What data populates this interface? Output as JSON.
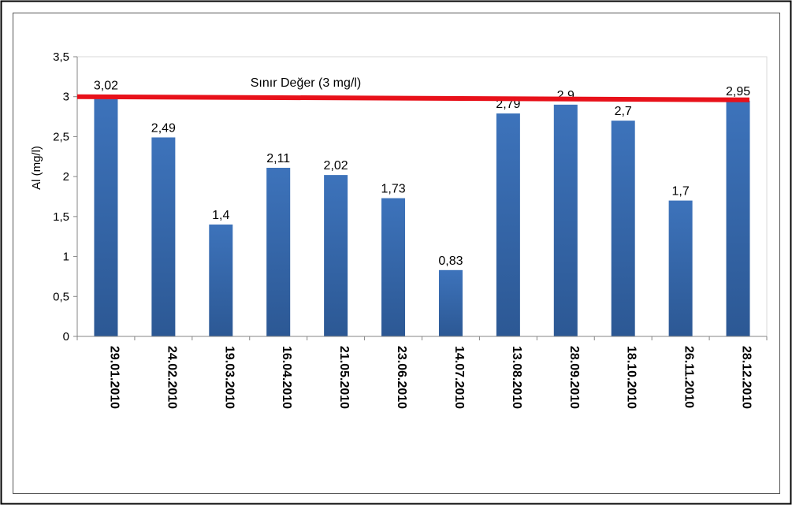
{
  "chart_data": {
    "type": "bar",
    "title": "",
    "xlabel": "",
    "ylabel": "Al (mg/l)",
    "ylim": [
      0,
      3.5
    ],
    "y_ticks": [
      0,
      0.5,
      1,
      1.5,
      2,
      2.5,
      3,
      3.5
    ],
    "y_tick_labels": [
      "0",
      "0,5",
      "1",
      "1,5",
      "2",
      "2,5",
      "3",
      "3,5"
    ],
    "categories": [
      "29.01.2010",
      "24.02.2010",
      "19.03.2010",
      "16.04.2010",
      "21.05.2010",
      "23.06.2010",
      "14.07.2010",
      "13.08.2010",
      "28.09.2010",
      "18.10.2010",
      "26.11.2010",
      "28.12.2010"
    ],
    "values": [
      3.02,
      2.49,
      1.4,
      2.11,
      2.02,
      1.73,
      0.83,
      2.79,
      2.9,
      2.7,
      1.7,
      2.95
    ],
    "data_labels": [
      "3,02",
      "2,49",
      "1,4",
      "2,11",
      "2,02",
      "1,73",
      "0,83",
      "2,79",
      "2,9",
      "2,7",
      "1,7",
      "2,95"
    ],
    "grid": false,
    "legend": "none",
    "limit_line": {
      "label": "Sınır Değer (3 mg/l)",
      "y_start": 3.0,
      "y_end": 2.96,
      "color": "#e8111a"
    },
    "bar_color": "#3d73bb",
    "bar_color_dark": "#2c5894"
  }
}
